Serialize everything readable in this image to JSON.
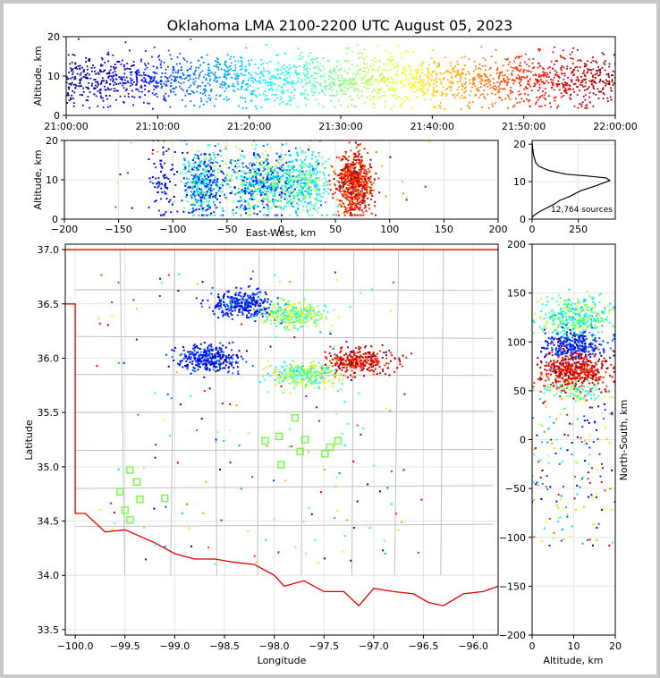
{
  "title": "Oklahoma LMA 2100-2200 UTC August 05, 2023",
  "colors": {
    "state_border": "#e00000",
    "county_lines": "#c0c0c0",
    "station_marker": "#66ff33",
    "histogram": "#000000"
  },
  "chart_data": [
    {
      "id": "time-height",
      "type": "scatter",
      "ylabel": "Altitude, km",
      "ylim": [
        0,
        20
      ],
      "x_ticks": [
        "21:00:00",
        "21:10:00",
        "21:20:00",
        "21:30:00",
        "21:40:00",
        "21:50:00",
        "22:00:00"
      ],
      "y_ticks": [
        "0",
        "10",
        "20"
      ],
      "colormap": "jet by time",
      "altitude_band_km": [
        2,
        17
      ],
      "density_peak_km": 9
    },
    {
      "id": "east-west-altitude",
      "type": "scatter",
      "xlabel": "East-West, km",
      "ylabel": "Altitude, km",
      "xlim": [
        -200,
        200
      ],
      "ylim": [
        0,
        20
      ],
      "x_ticks": [
        "−200",
        "−150",
        "−100",
        "−50",
        "0",
        "50",
        "100",
        "150",
        "200"
      ],
      "y_ticks": [
        "0",
        "10",
        "20"
      ],
      "clusters": [
        {
          "x_range": [
            -95,
            -50
          ],
          "color": "time-early-mid"
        },
        {
          "x_range": [
            -50,
            30
          ],
          "color": "mixed"
        },
        {
          "x_range": [
            40,
            90
          ],
          "color": "time-late"
        }
      ]
    },
    {
      "id": "altitude-histogram",
      "type": "line",
      "annotation": "12,764 sources",
      "xlim": [
        0,
        450
      ],
      "ylim": [
        0,
        21
      ],
      "x_ticks": [
        "0",
        "250"
      ],
      "y_ticks": [
        "0",
        "10",
        "20"
      ],
      "x": [
        0,
        10,
        40,
        80,
        120,
        150,
        200,
        260,
        350,
        420,
        400,
        300,
        180,
        90,
        40,
        20,
        8,
        3,
        0
      ],
      "y": [
        0.5,
        1,
        2,
        3,
        4,
        5,
        6,
        7.5,
        9,
        10.3,
        11,
        11.5,
        12,
        13,
        14,
        15,
        17,
        19,
        20.5
      ]
    },
    {
      "id": "plan-view-map",
      "type": "scatter",
      "xlabel": "Longitude",
      "ylabel": "Latitude",
      "xlim": [
        -100.1,
        -95.75
      ],
      "ylim": [
        33.45,
        37.05
      ],
      "x_ticks": [
        "−100.0",
        "−99.5",
        "−99.0",
        "−98.5",
        "−98.0",
        "−97.5",
        "−97.0",
        "−96.5",
        "−96.0"
      ],
      "y_ticks": [
        "33.5",
        "34.0",
        "34.5",
        "35.0",
        "35.5",
        "36.0",
        "36.5",
        "37.0"
      ],
      "stations": [
        {
          "lon": -99.45,
          "lat": 34.97
        },
        {
          "lon": -99.38,
          "lat": 34.86
        },
        {
          "lon": -99.55,
          "lat": 34.77
        },
        {
          "lon": -99.35,
          "lat": 34.7
        },
        {
          "lon": -99.5,
          "lat": 34.6
        },
        {
          "lon": -99.45,
          "lat": 34.51
        },
        {
          "lon": -99.1,
          "lat": 34.71
        },
        {
          "lon": -97.79,
          "lat": 35.45
        },
        {
          "lon": -97.95,
          "lat": 35.28
        },
        {
          "lon": -98.09,
          "lat": 35.24
        },
        {
          "lon": -97.69,
          "lat": 35.25
        },
        {
          "lon": -97.36,
          "lat": 35.24
        },
        {
          "lon": -97.44,
          "lat": 35.18
        },
        {
          "lon": -97.74,
          "lat": 35.14
        },
        {
          "lon": -97.49,
          "lat": 35.12
        },
        {
          "lon": -97.93,
          "lat": 35.02
        }
      ],
      "clusters": [
        {
          "lon": -98.3,
          "lat": 36.5,
          "color": "time-early"
        },
        {
          "lon": -97.8,
          "lat": 36.4,
          "color": "time-mid"
        },
        {
          "lon": -98.65,
          "lat": 36.0,
          "color": "time-early"
        },
        {
          "lon": -97.15,
          "lat": 35.97,
          "color": "time-late"
        },
        {
          "lon": -97.7,
          "lat": 35.85,
          "color": "time-mid"
        }
      ]
    },
    {
      "id": "altitude-north-south",
      "type": "scatter",
      "xlabel": "Altitude, km",
      "ylabel": "North-South, km",
      "xlim": [
        0,
        20
      ],
      "ylim": [
        -200,
        200
      ],
      "x_ticks": [
        "0",
        "10",
        "20"
      ],
      "y_ticks": [
        "−200",
        "−150",
        "−100",
        "−50",
        "0",
        "50",
        "100",
        "150",
        "200"
      ]
    }
  ]
}
